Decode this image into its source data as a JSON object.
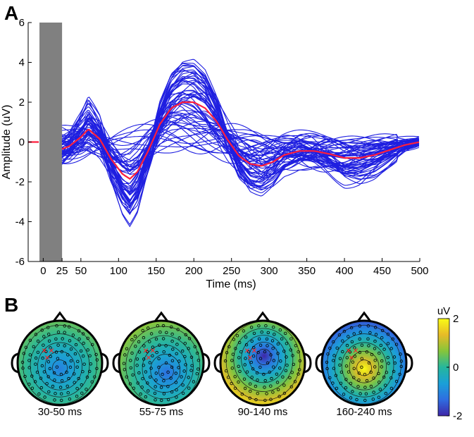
{
  "panel_a": {
    "label": "A"
  },
  "panel_b": {
    "label": "B"
  },
  "chart_data": [
    {
      "type": "line",
      "panel": "A",
      "xlabel": "Time (ms)",
      "ylabel": "Amplitude (uV)",
      "xlim": [
        -20,
        500
      ],
      "ylim": [
        -6,
        6
      ],
      "x_ticks": [
        0,
        25,
        50,
        100,
        150,
        200,
        250,
        300,
        350,
        400,
        450,
        500
      ],
      "x_tick_labels": [
        "0",
        "25",
        "50",
        "100",
        "150",
        "200",
        "250",
        "300",
        "350",
        "400",
        "450",
        "500"
      ],
      "y_ticks": [
        -6,
        -4,
        -2,
        0,
        2,
        4,
        6
      ],
      "y_tick_labels": [
        "-6",
        "-4",
        "-2",
        "0",
        "2",
        "4",
        "6"
      ],
      "grid": false,
      "shaded_interval": {
        "x0": -5,
        "x1": 25,
        "color": "#808080"
      },
      "channel_color": "#1f1fe0",
      "mean_color": "#ff1f3d",
      "n_channels": 60,
      "mean_series": {
        "x": [
          -20,
          -5,
          25,
          35,
          50,
          60,
          75,
          90,
          105,
          115,
          125,
          140,
          155,
          170,
          185,
          200,
          215,
          230,
          245,
          260,
          275,
          290,
          305,
          320,
          340,
          360,
          380,
          400,
          420,
          440,
          460,
          480,
          500
        ],
        "y": [
          0.0,
          0.0,
          -0.35,
          -0.2,
          0.25,
          0.65,
          0.15,
          -0.85,
          -1.6,
          -1.85,
          -1.5,
          -0.4,
          0.9,
          1.7,
          2.0,
          2.0,
          1.7,
          1.05,
          0.1,
          -0.7,
          -1.1,
          -1.2,
          -1.0,
          -0.65,
          -0.45,
          -0.45,
          -0.6,
          -0.8,
          -0.8,
          -0.65,
          -0.4,
          -0.15,
          0.0
        ]
      }
    },
    {
      "type": "heatmap",
      "panel": "B",
      "subtype": "topographic scalp maps",
      "colorbar": {
        "title": "uV",
        "range": [
          -2,
          2
        ],
        "ticks": [
          2,
          0,
          -2
        ],
        "tick_labels": [
          "2",
          "0",
          "-2"
        ],
        "colormap": "parula",
        "stops": [
          "#3e26a8",
          "#2f6de0",
          "#1aa0d8",
          "#25b79c",
          "#86c53a",
          "#e7bb27",
          "#f9fb15"
        ]
      },
      "maps": [
        {
          "window": "30-50 ms",
          "center_uV": -1.1,
          "edge_uV": 0.6,
          "peak": "center"
        },
        {
          "window": "55-75 ms",
          "center_uV": -1.3,
          "edge_uV": 0.7,
          "peak": "lower-center"
        },
        {
          "window": "90-140 ms",
          "center_uV": -2.0,
          "edge_uV": 1.8,
          "peak": "upper-center"
        },
        {
          "window": "160-240 ms",
          "center_uV": 2.0,
          "edge_uV": -1.9,
          "peak": "center"
        }
      ],
      "marker_symbol": "×",
      "marker_color": "#ff2020",
      "electrode_color": "#000000"
    }
  ]
}
